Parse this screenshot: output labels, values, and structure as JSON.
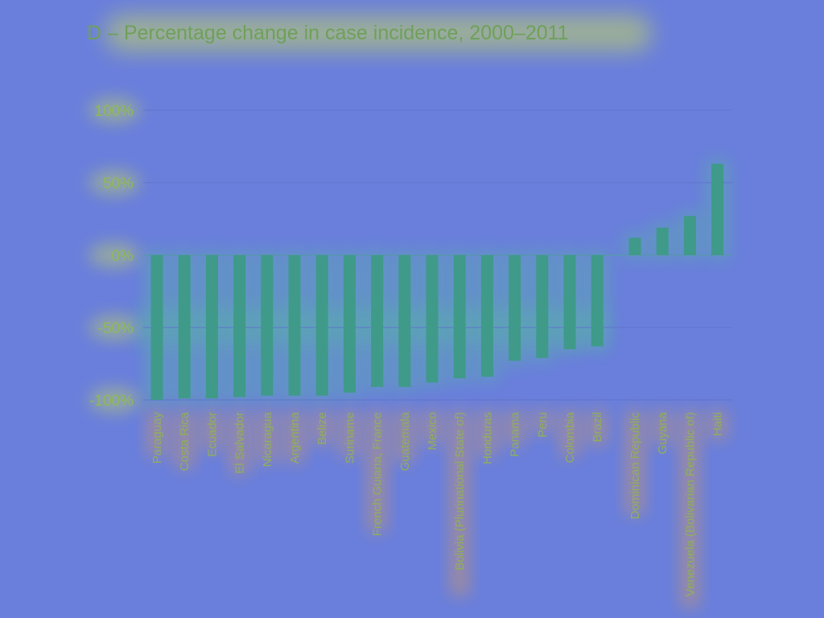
{
  "colors": {
    "background": "#6a7fdc",
    "bar": "#3f9a8a",
    "bar_glow": "#4fd08a",
    "title_glow": "#d8e84a",
    "label_glow": "#f0a040"
  },
  "chart_data": {
    "type": "bar",
    "title": "D –  Percentage change in case incidence, 2000–2011",
    "xlabel": "",
    "ylabel": "",
    "ylim": [
      -100,
      100
    ],
    "yticks": [
      100,
      50,
      0,
      -50,
      -100
    ],
    "ytick_labels": [
      "100%",
      "50%",
      "0%",
      "-50%",
      "-100%"
    ],
    "grid": true,
    "categories": [
      "Paraguay",
      "Costa Rica",
      "Ecuador",
      "El Salvador",
      "Nicaragua",
      "Argentina",
      "Belize",
      "Suriname",
      "French Guiana, France",
      "Guatemala",
      "Mexico",
      "Bolivia (Plurinational State of)",
      "Honduras",
      "Panama",
      "Peru",
      "Colombia",
      "Brazil",
      "Dominican Republic",
      "Guyana",
      "Venezuela (Bolivarian Republic of)",
      "Haiti"
    ],
    "values": [
      -100,
      -99,
      -99,
      -98,
      -97,
      -97,
      -97,
      -95,
      -91,
      -91,
      -88,
      -85,
      -84,
      -73,
      -71,
      -65,
      -63,
      12,
      19,
      27,
      63
    ]
  }
}
